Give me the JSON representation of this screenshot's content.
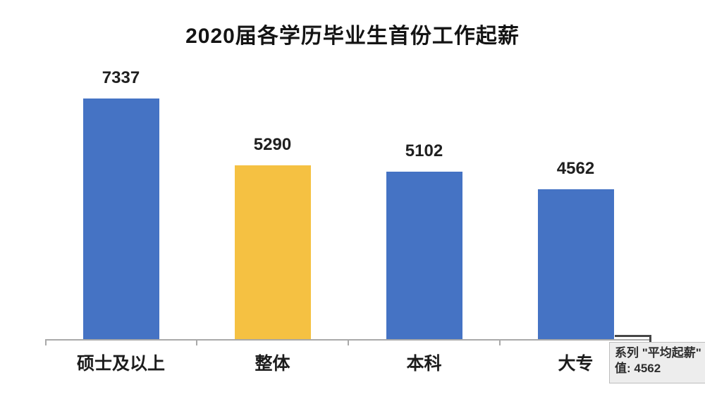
{
  "chart_data": {
    "type": "bar",
    "title": "2020届各学历毕业生首份工作起薪",
    "categories": [
      "硕士及以上",
      "整体",
      "本科",
      "大专"
    ],
    "series": [
      {
        "name": "平均起薪",
        "values": [
          7337,
          5290,
          5102,
          4562
        ]
      }
    ],
    "data_labels": [
      7337,
      5290,
      5102,
      4562
    ],
    "bar_colors": [
      "#4573c4",
      "#f5c142",
      "#4573c4",
      "#4573c4"
    ],
    "xlabel": "",
    "ylabel": "",
    "ylim": [
      0,
      8400
    ],
    "grid": false,
    "legend": "none",
    "data_labels_shown": true
  },
  "tooltip": {
    "series_line": "系列 \"平均起薪\"",
    "value_line": "值: 4562"
  },
  "colors": {
    "bar_default": "#4573c4",
    "bar_highlight": "#f5c142",
    "axis": "#a9a9a9",
    "title_text": "#141414",
    "tooltip_bg": "#ededed",
    "tooltip_border": "#bdbdbd"
  }
}
